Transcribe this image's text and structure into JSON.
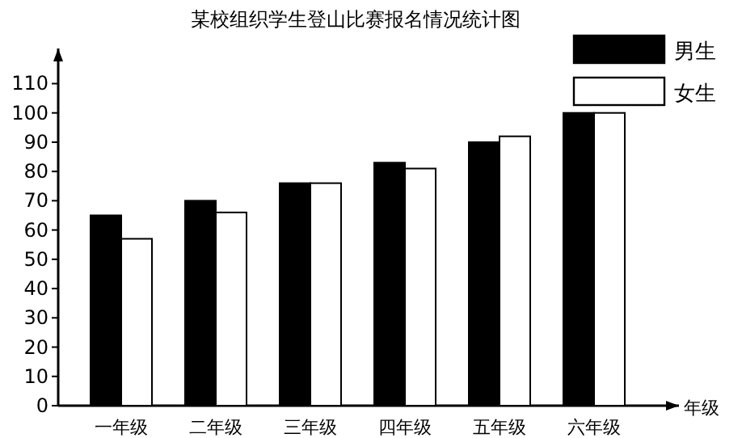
{
  "chart_data": {
    "type": "bar",
    "title": "某校组织学生登山比赛报名情况统计图",
    "xlabel": "年级",
    "categories": [
      "一年级",
      "二年级",
      "三年级",
      "四年级",
      "五年级",
      "六年级"
    ],
    "series": [
      {
        "name": "男生",
        "color": "#000000",
        "values": [
          65,
          70,
          76,
          83,
          90,
          100
        ]
      },
      {
        "name": "女生",
        "color": "#ffffff",
        "values": [
          57,
          66,
          76,
          81,
          92,
          100
        ]
      }
    ],
    "ylim": [
      0,
      122
    ],
    "yticks": [
      0,
      10,
      20,
      30,
      40,
      50,
      60,
      70,
      80,
      90,
      100,
      110
    ],
    "grid": false,
    "legend": "top right"
  }
}
